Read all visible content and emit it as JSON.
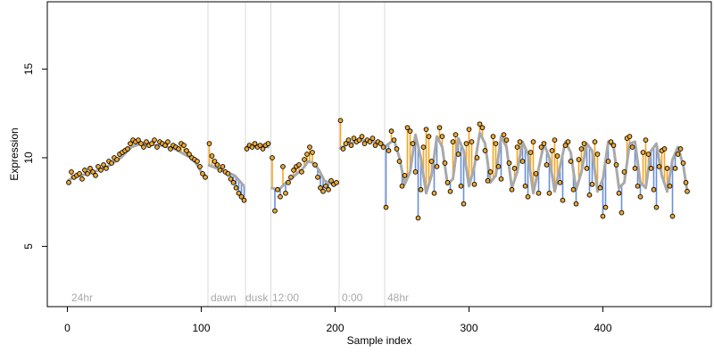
{
  "chart_data": {
    "type": "scatter",
    "title": "",
    "xlabel": "Sample index",
    "ylabel": "Expression",
    "xlim": [
      -15,
      481
    ],
    "ylim": [
      1.6,
      18.8
    ],
    "xticks": [
      0,
      100,
      200,
      300,
      400
    ],
    "yticks": [
      5,
      10,
      15
    ],
    "grid": false,
    "segment_boundaries": [
      105,
      133,
      152,
      203,
      237
    ],
    "segment_labels": [
      {
        "label": "24hr",
        "x": 3
      },
      {
        "label": "dawn",
        "x": 107
      },
      {
        "label": "dusk",
        "x": 133
      },
      {
        "label": "12:00",
        "x": 153
      },
      {
        "label": "0:00",
        "x": 205
      },
      {
        "label": "48hr",
        "x": 239
      }
    ],
    "colors": {
      "fit_curve": "#a9a9a9",
      "residual_above": "#f5a623",
      "residual_below": "#6a8fd8",
      "point_fill": "#f0a830",
      "point_stroke": "#000000",
      "boundary_line": "#d8d8d8",
      "segment_label": "#a9a9a9"
    },
    "fitted_curve": [
      [
        0,
        8.7
      ],
      [
        5,
        8.9
      ],
      [
        10,
        9.0
      ],
      [
        20,
        9.2
      ],
      [
        30,
        9.5
      ],
      [
        40,
        10.0
      ],
      [
        48,
        10.6
      ],
      [
        55,
        10.8
      ],
      [
        70,
        10.7
      ],
      [
        80,
        10.5
      ],
      [
        92,
        10.0
      ],
      [
        96,
        9.7
      ],
      [
        100,
        9.2
      ],
      [
        104,
        8.9
      ],
      [
        105,
        9.6
      ],
      [
        115,
        9.3
      ],
      [
        125,
        9.0
      ],
      [
        132,
        8.4
      ],
      [
        133,
        10.6
      ],
      [
        142,
        10.7
      ],
      [
        151,
        10.6
      ],
      [
        152,
        8.3
      ],
      [
        158,
        8.2
      ],
      [
        162,
        8.5
      ],
      [
        170,
        9.0
      ],
      [
        176,
        9.4
      ],
      [
        180,
        9.8
      ],
      [
        184,
        9.7
      ],
      [
        188,
        9.3
      ],
      [
        192,
        8.7
      ],
      [
        198,
        8.5
      ],
      [
        202,
        8.6
      ],
      [
        203,
        10.5
      ],
      [
        210,
        10.8
      ],
      [
        220,
        11.0
      ],
      [
        230,
        10.9
      ],
      [
        236,
        10.8
      ],
      [
        237,
        10.6
      ],
      [
        240,
        10.8
      ],
      [
        244,
        11.0
      ],
      [
        248,
        10.0
      ],
      [
        252,
        8.5
      ],
      [
        256,
        9.2
      ],
      [
        260,
        11.3
      ],
      [
        264,
        10.0
      ],
      [
        268,
        8.0
      ],
      [
        272,
        9.0
      ],
      [
        276,
        11.2
      ],
      [
        280,
        10.6
      ],
      [
        284,
        8.5
      ],
      [
        288,
        8.8
      ],
      [
        292,
        11.1
      ],
      [
        296,
        10.4
      ],
      [
        300,
        8.4
      ],
      [
        304,
        9.5
      ],
      [
        308,
        11.4
      ],
      [
        312,
        10.8
      ],
      [
        316,
        8.6
      ],
      [
        320,
        9.0
      ],
      [
        324,
        11.2
      ],
      [
        328,
        10.6
      ],
      [
        332,
        8.3
      ],
      [
        336,
        9.2
      ],
      [
        340,
        10.9
      ],
      [
        344,
        10.2
      ],
      [
        348,
        8.0
      ],
      [
        352,
        9.4
      ],
      [
        356,
        10.8
      ],
      [
        360,
        10.0
      ],
      [
        364,
        8.1
      ],
      [
        368,
        9.5
      ],
      [
        372,
        10.9
      ],
      [
        376,
        10.3
      ],
      [
        380,
        8.2
      ],
      [
        384,
        9.2
      ],
      [
        388,
        10.8
      ],
      [
        392,
        10.4
      ],
      [
        396,
        8.1
      ],
      [
        400,
        8.8
      ],
      [
        404,
        10.9
      ],
      [
        408,
        10.6
      ],
      [
        412,
        8.3
      ],
      [
        416,
        8.6
      ],
      [
        420,
        10.8
      ],
      [
        424,
        10.9
      ],
      [
        428,
        8.6
      ],
      [
        432,
        8.3
      ],
      [
        436,
        10.4
      ],
      [
        440,
        10.8
      ],
      [
        444,
        9.0
      ],
      [
        448,
        8.1
      ],
      [
        452,
        9.9
      ],
      [
        456,
        10.6
      ],
      [
        460,
        9.6
      ],
      [
        463,
        8.1
      ]
    ],
    "points": [
      [
        1,
        8.6
      ],
      [
        3,
        9.2
      ],
      [
        5,
        8.9
      ],
      [
        7,
        9.0
      ],
      [
        9,
        9.1
      ],
      [
        11,
        8.8
      ],
      [
        13,
        9.3
      ],
      [
        15,
        9.1
      ],
      [
        17,
        9.4
      ],
      [
        19,
        9.2
      ],
      [
        21,
        9.0
      ],
      [
        23,
        9.5
      ],
      [
        25,
        9.3
      ],
      [
        27,
        9.6
      ],
      [
        29,
        9.4
      ],
      [
        31,
        9.8
      ],
      [
        33,
        9.7
      ],
      [
        35,
        10.0
      ],
      [
        37,
        9.9
      ],
      [
        39,
        10.2
      ],
      [
        41,
        10.3
      ],
      [
        43,
        10.4
      ],
      [
        45,
        10.5
      ],
      [
        47,
        10.8
      ],
      [
        49,
        11.0
      ],
      [
        51,
        10.9
      ],
      [
        53,
        11.0
      ],
      [
        55,
        10.8
      ],
      [
        57,
        10.6
      ],
      [
        59,
        10.9
      ],
      [
        61,
        10.7
      ],
      [
        63,
        10.8
      ],
      [
        65,
        11.0
      ],
      [
        67,
        10.6
      ],
      [
        69,
        10.9
      ],
      [
        71,
        10.8
      ],
      [
        73,
        10.7
      ],
      [
        75,
        10.9
      ],
      [
        77,
        10.5
      ],
      [
        79,
        10.7
      ],
      [
        81,
        10.6
      ],
      [
        83,
        10.5
      ],
      [
        85,
        10.8
      ],
      [
        87,
        10.7
      ],
      [
        89,
        10.4
      ],
      [
        91,
        10.2
      ],
      [
        93,
        10.0
      ],
      [
        95,
        9.9
      ],
      [
        97,
        9.8
      ],
      [
        99,
        9.5
      ],
      [
        101,
        9.1
      ],
      [
        103,
        8.9
      ],
      [
        106,
        10.8
      ],
      [
        108,
        10.1
      ],
      [
        110,
        9.8
      ],
      [
        112,
        9.6
      ],
      [
        114,
        9.3
      ],
      [
        116,
        9.5
      ],
      [
        118,
        9.2
      ],
      [
        120,
        9.1
      ],
      [
        122,
        8.8
      ],
      [
        124,
        8.6
      ],
      [
        126,
        8.3
      ],
      [
        128,
        8.0
      ],
      [
        130,
        7.8
      ],
      [
        132,
        7.6
      ],
      [
        134,
        10.5
      ],
      [
        136,
        10.7
      ],
      [
        138,
        10.6
      ],
      [
        140,
        10.8
      ],
      [
        142,
        10.6
      ],
      [
        144,
        10.7
      ],
      [
        146,
        10.5
      ],
      [
        148,
        10.7
      ],
      [
        150,
        10.8
      ],
      [
        153,
        10.0
      ],
      [
        155,
        7.0
      ],
      [
        157,
        8.2
      ],
      [
        159,
        7.8
      ],
      [
        161,
        9.5
      ],
      [
        163,
        8.0
      ],
      [
        165,
        8.6
      ],
      [
        167,
        8.9
      ],
      [
        169,
        9.3
      ],
      [
        171,
        9.5
      ],
      [
        173,
        9.6
      ],
      [
        175,
        9.2
      ],
      [
        177,
        9.9
      ],
      [
        179,
        10.2
      ],
      [
        181,
        10.6
      ],
      [
        183,
        10.3
      ],
      [
        185,
        9.6
      ],
      [
        187,
        8.9
      ],
      [
        189,
        8.3
      ],
      [
        191,
        8.1
      ],
      [
        193,
        8.4
      ],
      [
        195,
        8.2
      ],
      [
        197,
        8.7
      ],
      [
        199,
        8.5
      ],
      [
        201,
        8.6
      ],
      [
        204,
        12.1
      ],
      [
        206,
        10.5
      ],
      [
        208,
        10.8
      ],
      [
        210,
        11.0
      ],
      [
        212,
        10.7
      ],
      [
        214,
        11.1
      ],
      [
        216,
        10.9
      ],
      [
        218,
        11.0
      ],
      [
        220,
        11.2
      ],
      [
        222,
        10.8
      ],
      [
        224,
        11.0
      ],
      [
        226,
        10.9
      ],
      [
        228,
        11.1
      ],
      [
        230,
        10.7
      ],
      [
        232,
        10.9
      ],
      [
        234,
        10.8
      ],
      [
        236,
        10.6
      ],
      [
        238,
        7.2
      ],
      [
        240,
        10.4
      ],
      [
        242,
        11.5
      ],
      [
        244,
        11.0
      ],
      [
        246,
        10.5
      ],
      [
        248,
        9.8
      ],
      [
        250,
        8.4
      ],
      [
        252,
        9.0
      ],
      [
        254,
        11.7
      ],
      [
        256,
        11.5
      ],
      [
        258,
        10.8
      ],
      [
        260,
        9.2
      ],
      [
        262,
        6.6
      ],
      [
        264,
        8.2
      ],
      [
        266,
        10.6
      ],
      [
        268,
        11.6
      ],
      [
        270,
        11.2
      ],
      [
        272,
        9.8
      ],
      [
        274,
        8.0
      ],
      [
        276,
        9.5
      ],
      [
        278,
        11.7
      ],
      [
        280,
        11.2
      ],
      [
        282,
        9.7
      ],
      [
        284,
        8.6
      ],
      [
        286,
        8.1
      ],
      [
        288,
        10.9
      ],
      [
        290,
        11.3
      ],
      [
        292,
        10.2
      ],
      [
        294,
        8.4
      ],
      [
        296,
        7.4
      ],
      [
        298,
        10.8
      ],
      [
        300,
        11.6
      ],
      [
        302,
        10.9
      ],
      [
        304,
        8.5
      ],
      [
        306,
        10.0
      ],
      [
        308,
        11.9
      ],
      [
        310,
        11.7
      ],
      [
        312,
        10.4
      ],
      [
        314,
        8.7
      ],
      [
        316,
        9.2
      ],
      [
        318,
        11.2
      ],
      [
        320,
        10.8
      ],
      [
        322,
        9.5
      ],
      [
        324,
        8.8
      ],
      [
        326,
        11.3
      ],
      [
        328,
        11.0
      ],
      [
        330,
        9.7
      ],
      [
        332,
        8.2
      ],
      [
        334,
        9.4
      ],
      [
        336,
        10.6
      ],
      [
        338,
        10.9
      ],
      [
        340,
        9.8
      ],
      [
        342,
        8.4
      ],
      [
        344,
        7.8
      ],
      [
        346,
        10.3
      ],
      [
        348,
        10.9
      ],
      [
        350,
        9.1
      ],
      [
        352,
        8.0
      ],
      [
        354,
        10.6
      ],
      [
        356,
        10.8
      ],
      [
        358,
        9.6
      ],
      [
        360,
        8.0
      ],
      [
        362,
        10.4
      ],
      [
        364,
        11.0
      ],
      [
        366,
        10.1
      ],
      [
        368,
        8.6
      ],
      [
        370,
        7.6
      ],
      [
        372,
        10.7
      ],
      [
        374,
        10.9
      ],
      [
        376,
        9.8
      ],
      [
        378,
        8.2
      ],
      [
        380,
        7.4
      ],
      [
        382,
        9.9
      ],
      [
        384,
        10.5
      ],
      [
        386,
        10.8
      ],
      [
        388,
        9.4
      ],
      [
        390,
        7.9
      ],
      [
        392,
        8.5
      ],
      [
        394,
        10.9
      ],
      [
        396,
        10.2
      ],
      [
        398,
        8.3
      ],
      [
        400,
        6.7
      ],
      [
        402,
        7.2
      ],
      [
        404,
        9.8
      ],
      [
        406,
        10.9
      ],
      [
        408,
        10.7
      ],
      [
        410,
        9.6
      ],
      [
        412,
        8.0
      ],
      [
        414,
        6.9
      ],
      [
        416,
        9.2
      ],
      [
        418,
        11.1
      ],
      [
        420,
        11.2
      ],
      [
        422,
        10.6
      ],
      [
        424,
        9.4
      ],
      [
        426,
        8.4
      ],
      [
        428,
        7.8
      ],
      [
        430,
        10.3
      ],
      [
        432,
        11.0
      ],
      [
        434,
        10.2
      ],
      [
        436,
        9.4
      ],
      [
        438,
        8.2
      ],
      [
        440,
        7.2
      ],
      [
        442,
        9.5
      ],
      [
        444,
        10.4
      ],
      [
        446,
        10.5
      ],
      [
        448,
        9.4
      ],
      [
        450,
        8.4
      ],
      [
        452,
        6.7
      ],
      [
        454,
        9.4
      ],
      [
        456,
        10.2
      ],
      [
        458,
        10.5
      ],
      [
        460,
        9.7
      ],
      [
        462,
        8.6
      ],
      [
        463,
        8.1
      ]
    ]
  }
}
